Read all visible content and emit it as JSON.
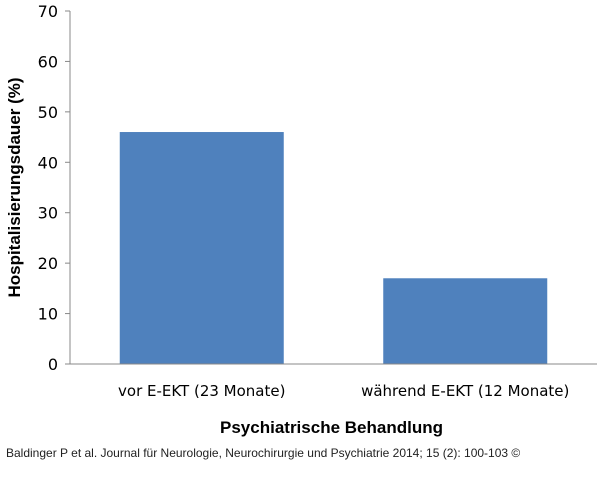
{
  "chart_data": {
    "type": "bar",
    "categories": [
      "vor E-EKT (23 Monate)",
      "während E-EKT (12 Monate)"
    ],
    "values": [
      46,
      17
    ],
    "xlabel": "Psychiatrische Behandlung",
    "ylabel": "Hospitalisierungsdauer (%)",
    "ylim": [
      0,
      70
    ],
    "yticks": [
      0,
      10,
      20,
      30,
      40,
      50,
      60,
      70
    ],
    "bar_color": "#4f81bd",
    "grid": false,
    "legend": "none"
  },
  "citation": "Baldinger P et al. Journal für Neurologie, Neurochirurgie und Psychiatrie 2014; 15 (2): 100-103 ©"
}
